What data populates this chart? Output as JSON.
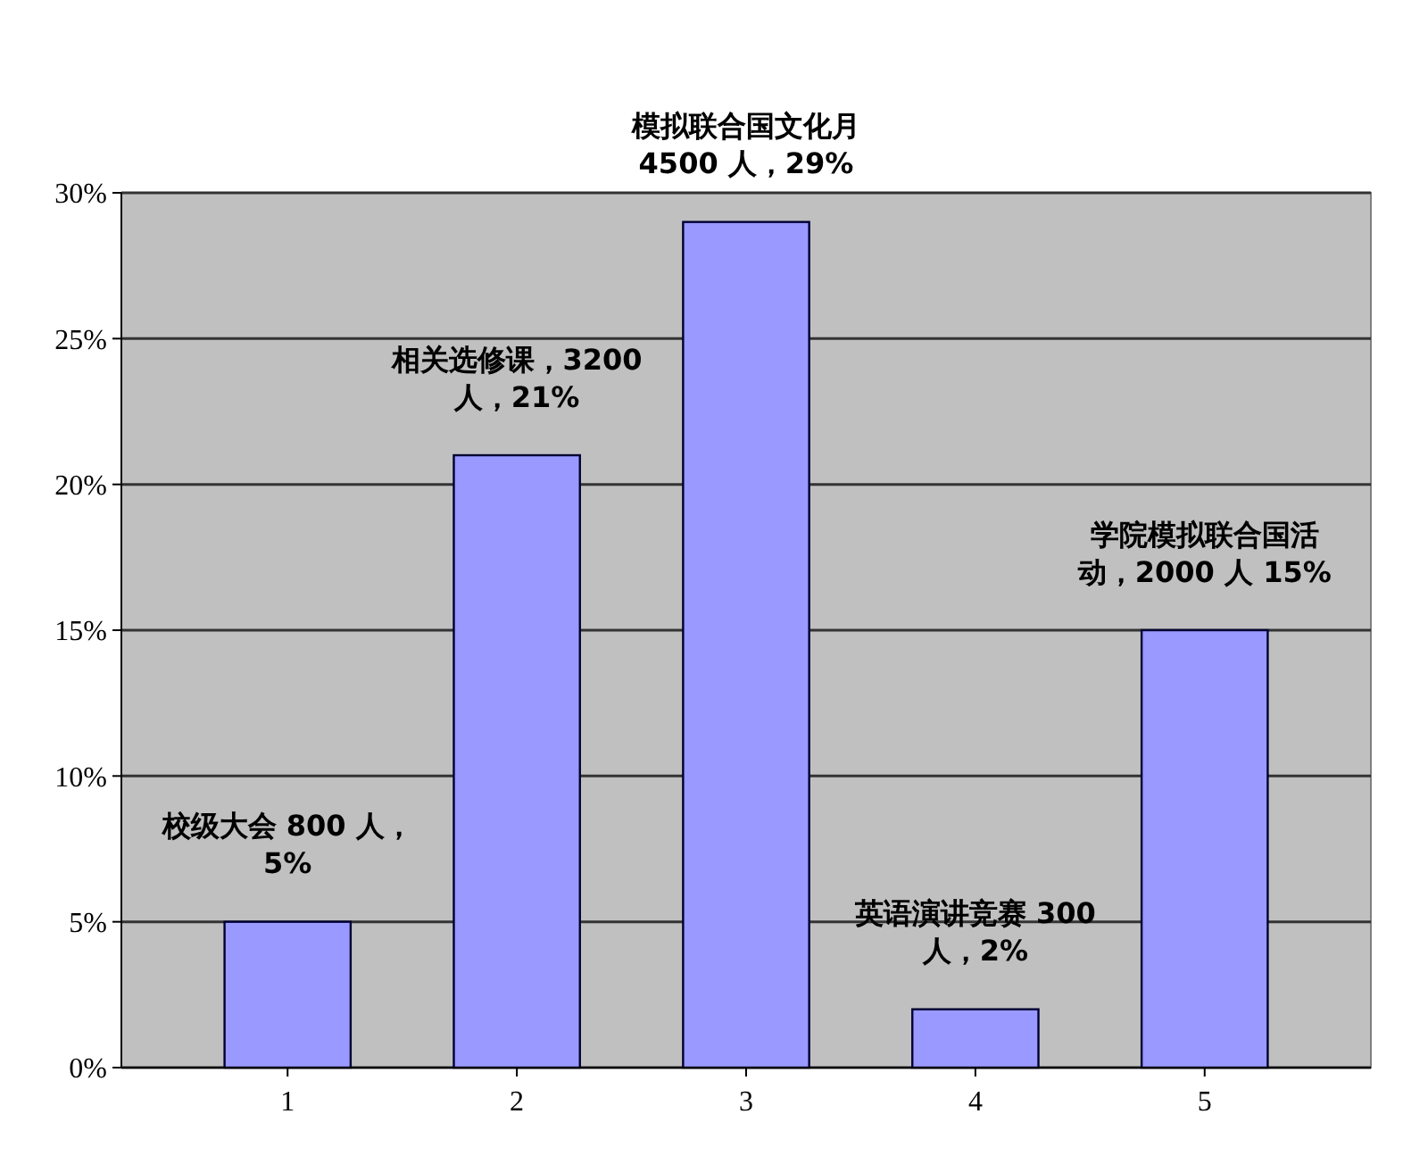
{
  "chart_data": {
    "type": "bar",
    "categories": [
      "1",
      "2",
      "3",
      "4",
      "5"
    ],
    "values": [
      5,
      21,
      29,
      2,
      15
    ],
    "color": "#9999ff",
    "ylim": [
      0,
      30
    ],
    "yticks": [
      {
        "value": 0,
        "label": "0%"
      },
      {
        "value": 5,
        "label": "5%"
      },
      {
        "value": 10,
        "label": "10%"
      },
      {
        "value": 15,
        "label": "15%"
      },
      {
        "value": 20,
        "label": "20%"
      },
      {
        "value": 25,
        "label": "25%"
      },
      {
        "value": 30,
        "label": "30%"
      }
    ],
    "grid": "y",
    "annotations": [
      {
        "text": "校级大会 800 人，5%",
        "x": "1",
        "y": 5
      },
      {
        "text": "相关选修课，3200 人，21%",
        "x": "2",
        "y": 21
      },
      {
        "text": "模拟联合国文化月 4500 人，29%",
        "x": "3",
        "y": 29
      },
      {
        "text": "英语演讲竞赛 300 人，2%",
        "x": "4",
        "y": 2
      },
      {
        "text": "学院模拟联合国活动，2000 人 15%",
        "x": "5",
        "y": 15
      }
    ]
  }
}
